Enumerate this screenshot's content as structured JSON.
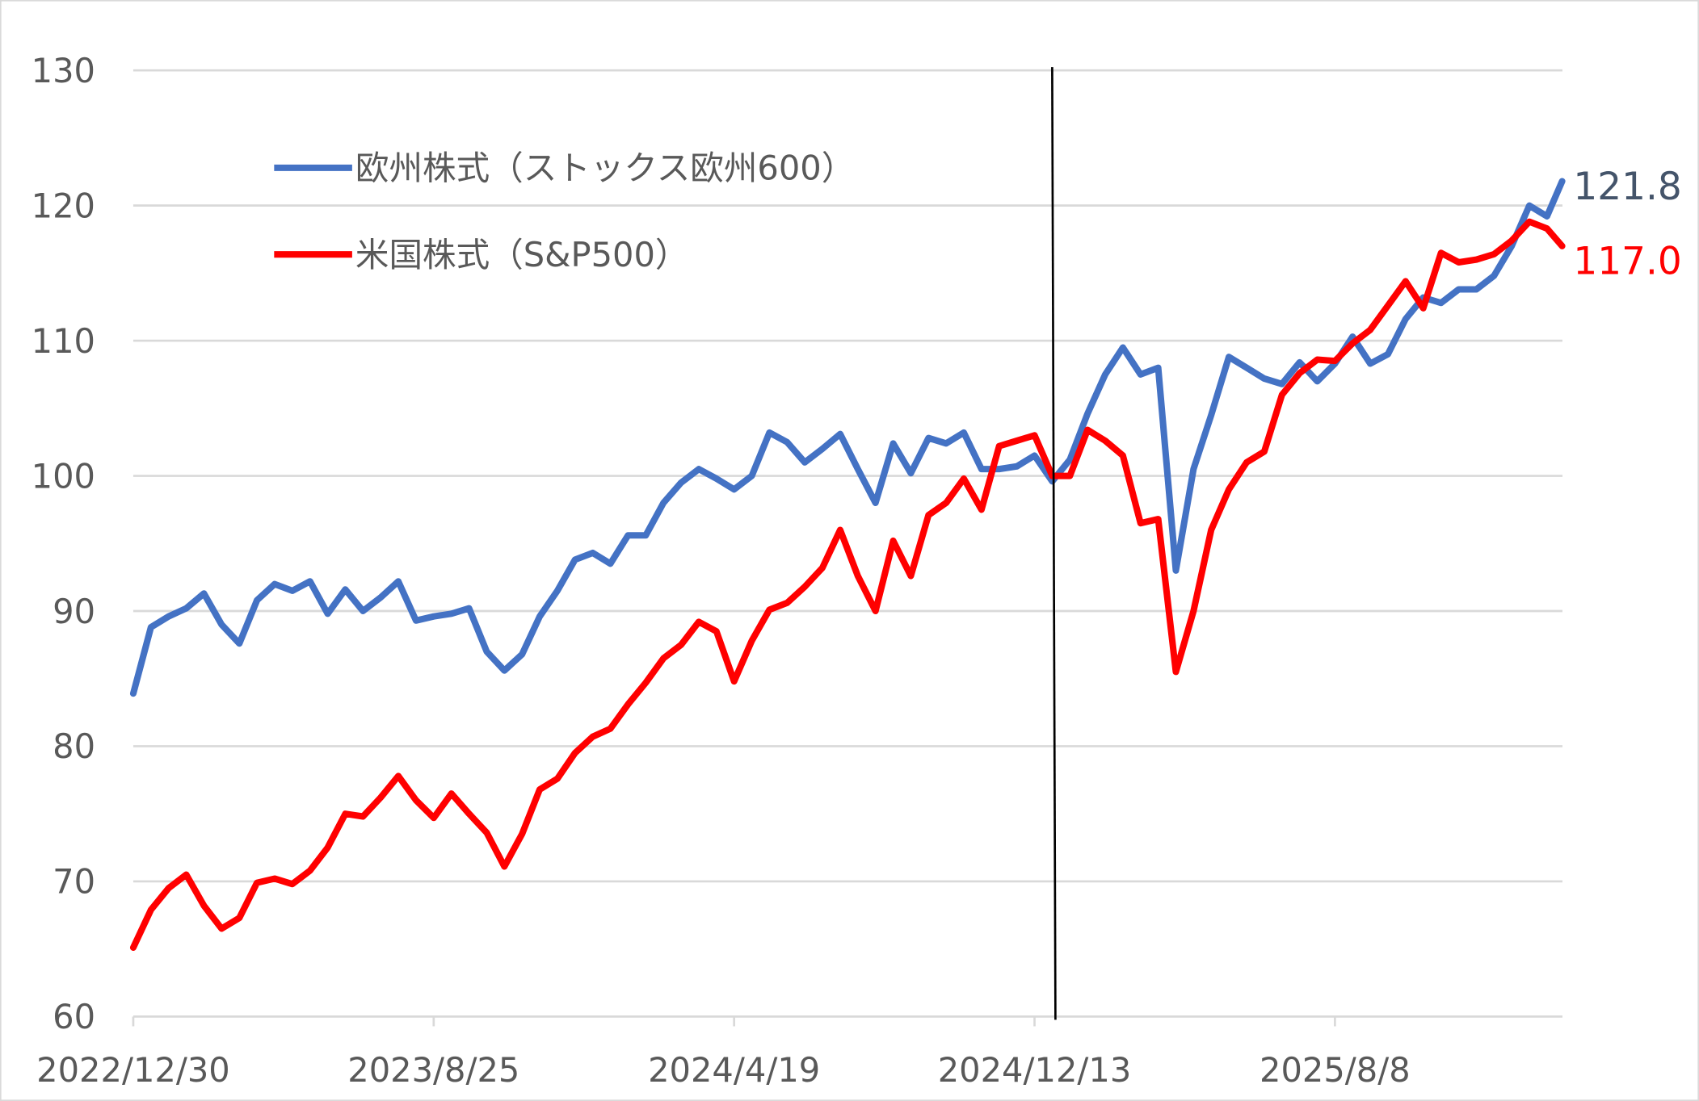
{
  "chart_data": {
    "type": "line",
    "title": "",
    "xlabel": "",
    "ylabel": "",
    "ylim": [
      60,
      130
    ],
    "yticks": [
      "60",
      "70",
      "80",
      "90",
      "100",
      "110",
      "120",
      "130"
    ],
    "xticks": [
      "2022/12/30",
      "2023/8/25",
      "2024/4/19",
      "2024/12/13",
      "2025/8/8"
    ],
    "xtick_dates": [
      "2022-12-30",
      "2023-08-25",
      "2024-04-19",
      "2024-12-13",
      "2025-08-08"
    ],
    "grid": "horizontal",
    "legend_position": "top-left",
    "vertical_marker_date": "2024-12-27",
    "x": [
      "2022-12-30",
      "2023-01-13",
      "2023-01-27",
      "2023-02-10",
      "2023-02-24",
      "2023-03-10",
      "2023-03-24",
      "2023-04-07",
      "2023-04-21",
      "2023-05-05",
      "2023-05-19",
      "2023-06-02",
      "2023-06-16",
      "2023-06-30",
      "2023-07-14",
      "2023-07-28",
      "2023-08-11",
      "2023-08-25",
      "2023-09-08",
      "2023-09-22",
      "2023-10-06",
      "2023-10-20",
      "2023-11-03",
      "2023-11-17",
      "2023-12-01",
      "2023-12-15",
      "2023-12-29",
      "2024-01-12",
      "2024-01-26",
      "2024-02-09",
      "2024-02-23",
      "2024-03-08",
      "2024-03-22",
      "2024-04-05",
      "2024-04-19",
      "2024-05-03",
      "2024-05-17",
      "2024-05-31",
      "2024-06-14",
      "2024-06-28",
      "2024-07-12",
      "2024-07-26",
      "2024-08-09",
      "2024-08-23",
      "2024-09-06",
      "2024-09-20",
      "2024-10-04",
      "2024-10-18",
      "2024-11-01",
      "2024-11-15",
      "2024-11-29",
      "2024-12-13",
      "2024-12-27",
      "2025-01-10",
      "2025-01-24",
      "2025-02-07",
      "2025-02-21",
      "2025-03-07",
      "2025-03-21",
      "2025-04-04",
      "2025-04-18",
      "2025-05-02",
      "2025-05-16",
      "2025-05-30",
      "2025-06-13",
      "2025-06-27",
      "2025-07-11",
      "2025-07-25",
      "2025-08-08",
      "2025-08-22",
      "2025-09-05",
      "2025-09-19",
      "2025-10-03",
      "2025-10-17",
      "2025-10-31",
      "2025-11-14",
      "2025-11-28",
      "2025-12-12",
      "2025-12-26",
      "2026-01-09",
      "2026-01-23",
      "2026-02-04"
    ],
    "series": [
      {
        "name": "欧州株式（ストックス欧州600）",
        "color": "#4472C4",
        "values": [
          83.9,
          88.8,
          89.6,
          90.2,
          91.3,
          89.0,
          87.6,
          90.8,
          92.0,
          91.5,
          92.2,
          89.8,
          91.6,
          90.0,
          91.0,
          92.2,
          89.3,
          89.6,
          89.8,
          90.2,
          87.0,
          85.6,
          86.8,
          89.6,
          91.5,
          93.8,
          94.3,
          93.5,
          95.6,
          95.6,
          98.0,
          99.5,
          100.5,
          99.8,
          99.0,
          100.0,
          103.2,
          102.5,
          101.0,
          102.0,
          103.1,
          100.5,
          98.0,
          102.4,
          100.2,
          102.8,
          102.4,
          103.2,
          100.5,
          100.5,
          100.7,
          101.5,
          99.6,
          101.2,
          104.6,
          107.5,
          109.5,
          107.5,
          108.0,
          93.0,
          100.5,
          104.5,
          108.8,
          108.0,
          107.2,
          106.8,
          108.4,
          107.0,
          108.3,
          110.3,
          108.3,
          109.0,
          111.6,
          113.2,
          112.8,
          113.8,
          113.8,
          114.8,
          117.0,
          120.0,
          119.2,
          121.8
        ],
        "end_label": "121.8",
        "end_label_color": "#44546A"
      },
      {
        "name": "米国株式（S&P500）",
        "color": "#FF0000",
        "values": [
          65.1,
          67.9,
          69.5,
          70.5,
          68.2,
          66.5,
          67.3,
          69.9,
          70.2,
          69.8,
          70.8,
          72.5,
          75.0,
          74.8,
          76.2,
          77.8,
          76.0,
          74.7,
          76.5,
          75.0,
          73.6,
          71.1,
          73.5,
          76.8,
          77.6,
          79.5,
          80.7,
          81.3,
          83.1,
          84.7,
          86.5,
          87.5,
          89.2,
          88.5,
          84.8,
          87.8,
          90.1,
          90.6,
          91.8,
          93.2,
          96.0,
          92.6,
          90.0,
          95.2,
          92.6,
          97.1,
          98.0,
          99.8,
          97.5,
          102.2,
          102.6,
          103.0,
          100.0,
          100.0,
          103.4,
          102.6,
          101.5,
          96.5,
          96.8,
          85.5,
          90.0,
          96.0,
          99.0,
          101.0,
          101.8,
          106.0,
          107.6,
          108.6,
          108.5,
          109.8,
          110.8,
          112.6,
          114.4,
          112.4,
          116.5,
          115.8,
          116.0,
          116.4,
          117.4,
          118.8,
          118.3,
          117.0
        ],
        "end_label": "117.0",
        "end_label_color": "#FF0000"
      }
    ]
  }
}
